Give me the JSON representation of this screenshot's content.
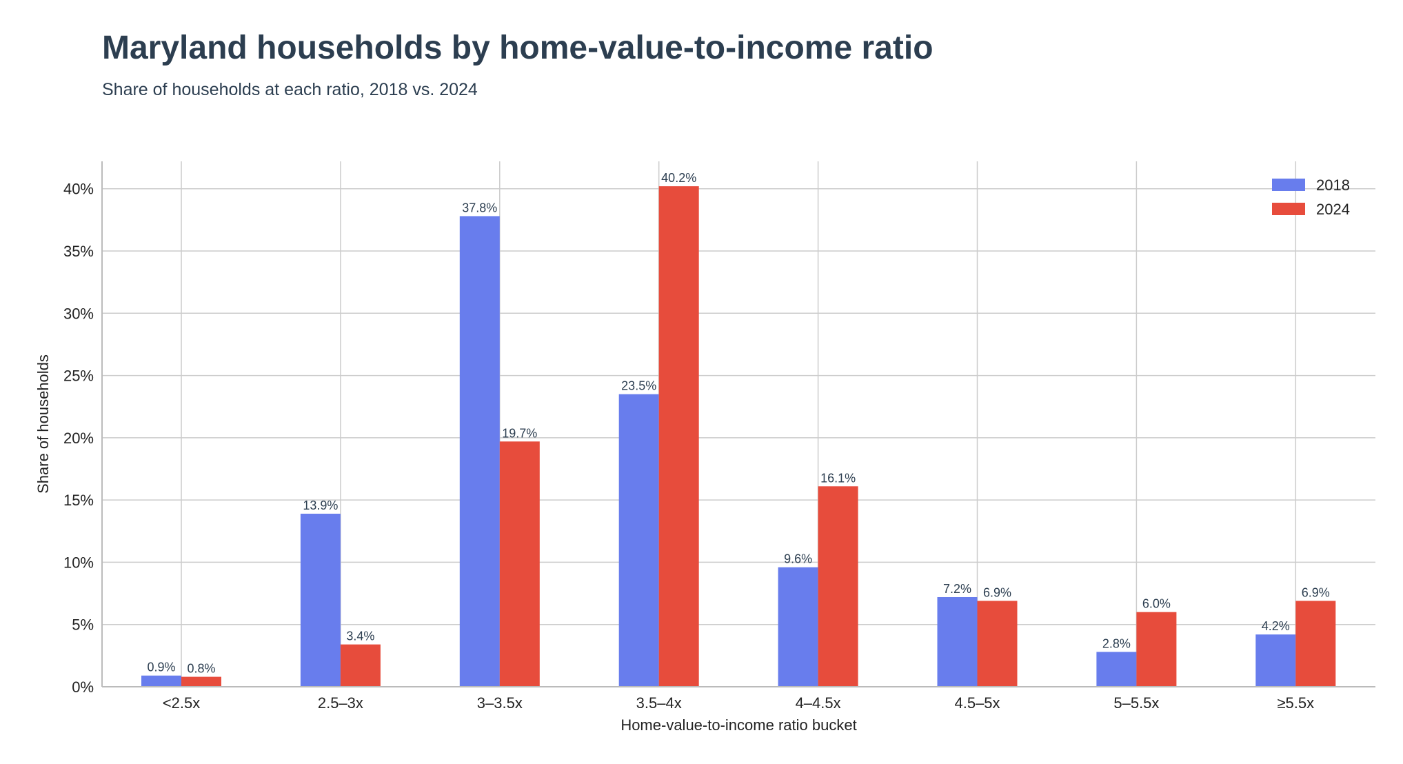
{
  "title": "Maryland households by home-value-to-income ratio",
  "subtitle": "Share of households at each ratio, 2018 vs. 2024",
  "chart_data": {
    "type": "bar",
    "categories": [
      "<2.5x",
      "2.5–3x",
      "3–3.5x",
      "3.5–4x",
      "4–4.5x",
      "4.5–5x",
      "5–5.5x",
      "≥5.5x"
    ],
    "series": [
      {
        "name": "2018",
        "color": "#687ded",
        "values": [
          0.9,
          13.9,
          37.8,
          23.5,
          9.6,
          7.2,
          2.8,
          4.2
        ]
      },
      {
        "name": "2024",
        "color": "#e74c3c",
        "values": [
          0.8,
          3.4,
          19.7,
          40.2,
          16.1,
          6.9,
          6.0,
          6.9
        ]
      }
    ],
    "data_labels": [
      [
        "0.9%",
        "13.9%",
        "37.8%",
        "23.5%",
        "9.6%",
        "7.2%",
        "2.8%",
        "4.2%"
      ],
      [
        "0.8%",
        "3.4%",
        "19.7%",
        "40.2%",
        "16.1%",
        "6.9%",
        "6.0%",
        "6.9%"
      ]
    ],
    "yticks": [
      0,
      5,
      10,
      15,
      20,
      25,
      30,
      35,
      40
    ],
    "ytick_labels": [
      "0%",
      "5%",
      "10%",
      "15%",
      "20%",
      "25%",
      "30%",
      "35%",
      "40%"
    ],
    "ylim": [
      0,
      42.2
    ],
    "xlabel": "Home-value-to-income ratio bucket",
    "ylabel": "Share of households",
    "grid": true,
    "legend_position": "top-right",
    "title": "Maryland households by home-value-to-income ratio",
    "subtitle": "Share of households at each ratio, 2018 vs. 2024"
  }
}
